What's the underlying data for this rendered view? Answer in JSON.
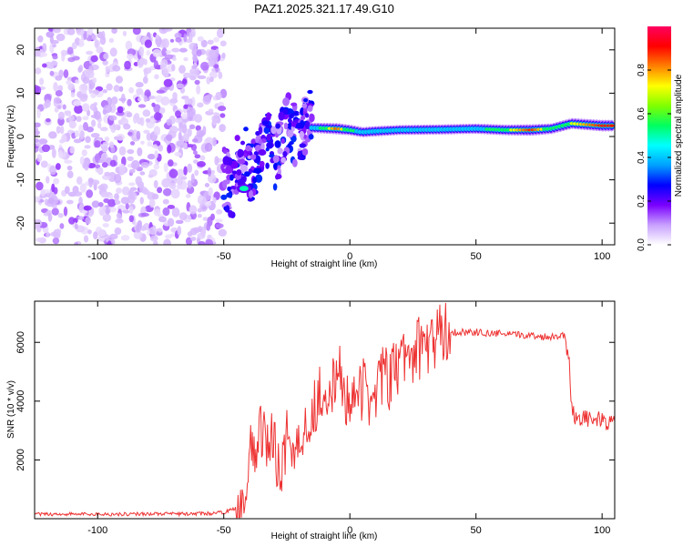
{
  "title": "PAZ1.2025.321.17.49.G10",
  "chart_data": [
    {
      "type": "heatmap",
      "xlabel": "Height of straight line (km)",
      "ylabel": "Frequency (Hz)",
      "xlim": [
        -125,
        105
      ],
      "ylim": [
        -25,
        25
      ],
      "xticks": [
        -100,
        -50,
        0,
        50,
        100
      ],
      "yticks": [
        -20,
        -10,
        0,
        10,
        20
      ],
      "xtick_labels": [
        "-100",
        "-50",
        "0",
        "50",
        "100"
      ],
      "ytick_labels": [
        "-20",
        "-10",
        "0",
        "10",
        "20"
      ],
      "colorbar": {
        "label": "Normalized spectral amplitude",
        "range": [
          0,
          1
        ],
        "ticks": [
          0.0,
          0.2,
          0.4,
          0.6,
          0.8
        ],
        "tick_labels": [
          "0.0",
          "0.2",
          "0.4",
          "0.6",
          "0.8"
        ],
        "colors": [
          "#ffffff",
          "#c8a0ff",
          "#7a00ff",
          "#0000ff",
          "#00a0ff",
          "#00ffff",
          "#00ff60",
          "#80ff00",
          "#ffff00",
          "#ff8000",
          "#ff0000",
          "#ff0060"
        ]
      },
      "features": {
        "noise_region_x": [
          -125,
          -50
        ],
        "transition_region_x": [
          -50,
          -15
        ],
        "transition_blob": {
          "x": -42,
          "y": -12,
          "amp": 0.5
        },
        "signal_band": [
          {
            "x": -15,
            "y": 2.0,
            "amp": 0.45
          },
          {
            "x": -5,
            "y": 1.8,
            "amp": 0.85
          },
          {
            "x": 0,
            "y": 1.5,
            "amp": 0.6
          },
          {
            "x": 5,
            "y": 1.0,
            "amp": 0.5
          },
          {
            "x": 10,
            "y": 1.2,
            "amp": 0.55
          },
          {
            "x": 20,
            "y": 1.5,
            "amp": 0.45
          },
          {
            "x": 35,
            "y": 1.6,
            "amp": 0.5
          },
          {
            "x": 50,
            "y": 1.8,
            "amp": 0.5
          },
          {
            "x": 62,
            "y": 1.5,
            "amp": 0.65
          },
          {
            "x": 72,
            "y": 1.5,
            "amp": 0.9
          },
          {
            "x": 80,
            "y": 1.8,
            "amp": 0.6
          },
          {
            "x": 88,
            "y": 3.0,
            "amp": 0.7
          },
          {
            "x": 100,
            "y": 2.5,
            "amp": 0.9
          }
        ]
      }
    },
    {
      "type": "line",
      "xlabel": "Height of straight line (km)",
      "ylabel": "SNR (10 * v/v)",
      "xlim": [
        -125,
        105
      ],
      "ylim": [
        0,
        7400
      ],
      "xticks": [
        -100,
        -50,
        0,
        50,
        100
      ],
      "yticks": [
        2000,
        4000,
        6000
      ],
      "xtick_labels": [
        "-100",
        "-50",
        "0",
        "50",
        "100"
      ],
      "ytick_labels": [
        "2000",
        "4000",
        "6000"
      ],
      "line_color": "#ee3333",
      "series": [
        {
          "name": "SNR",
          "x": [
            -125,
            -110,
            -95,
            -80,
            -65,
            -55,
            -50,
            -45,
            -42,
            -40,
            -38,
            -36,
            -34,
            -32,
            -30,
            -28,
            -26,
            -24,
            -22,
            -20,
            -18,
            -16,
            -14,
            -12,
            -10,
            -8,
            -6,
            -4,
            -2,
            0,
            2,
            4,
            6,
            8,
            10,
            12,
            14,
            16,
            18,
            20,
            25,
            30,
            35,
            38,
            40,
            42,
            45,
            50,
            55,
            60,
            65,
            70,
            75,
            80,
            85,
            87,
            88,
            90,
            92,
            95,
            98,
            100,
            105
          ],
          "y": [
            150,
            160,
            150,
            170,
            160,
            180,
            220,
            350,
            700,
            2200,
            2000,
            2800,
            3200,
            2400,
            2600,
            1800,
            2200,
            3300,
            2000,
            2600,
            3400,
            3000,
            3900,
            4300,
            4100,
            4800,
            4200,
            5000,
            4000,
            4200,
            4600,
            4100,
            4600,
            3900,
            4500,
            4800,
            4900,
            4600,
            5100,
            5300,
            5700,
            5900,
            6150,
            6500,
            6300,
            6350,
            6350,
            6350,
            6300,
            6300,
            6250,
            6250,
            6200,
            6200,
            6250,
            5400,
            3700,
            3400,
            3500,
            3350,
            3400,
            3300,
            3300
          ]
        }
      ]
    }
  ]
}
